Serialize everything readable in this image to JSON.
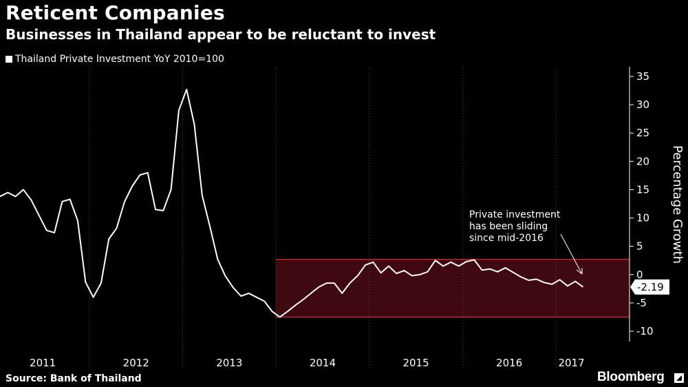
{
  "header": {
    "title": "Reticent Companies",
    "subtitle": "Businesses in Thailand appear to be reluctant to invest"
  },
  "footer": {
    "source": "Source:  Bank of Thailand",
    "brand": "Bloomberg"
  },
  "colors": {
    "background": "#000000",
    "line": "#ffffff",
    "band_fill": "#4a0a12",
    "band_stroke": "#e02a3a",
    "grid": "#555555"
  },
  "chart_data": {
    "type": "line",
    "title": "Reticent Companies",
    "subtitle": "Businesses in Thailand appear to be reluctant to invest",
    "ylabel": "Percentage Growth",
    "xlabel": "",
    "ylim": [
      -10,
      35
    ],
    "yticks": [
      35,
      30,
      25,
      20,
      15,
      10,
      5,
      0,
      -5,
      -10
    ],
    "y_axis_position": "right",
    "x_period_labels": [
      "2011",
      "2012",
      "2013",
      "2014",
      "2015",
      "2016",
      "2017"
    ],
    "x_periods": [
      {
        "label": "2011",
        "start": "2011-01",
        "end": "2011-12"
      },
      {
        "label": "2012",
        "start": "2012-01",
        "end": "2012-12"
      },
      {
        "label": "2013",
        "start": "2013-01",
        "end": "2013-12"
      },
      {
        "label": "2014",
        "start": "2014-01",
        "end": "2014-12"
      },
      {
        "label": "2015",
        "start": "2015-01",
        "end": "2015-12"
      },
      {
        "label": "2016",
        "start": "2016-01",
        "end": "2016-12"
      },
      {
        "label": "2017",
        "start": "2017-01",
        "end": "2017-04"
      }
    ],
    "grid": "vertical dotted year separators",
    "legend": "top-left",
    "series": [
      {
        "name": "Thailand Private Investment YoY 2010=100",
        "color": "#ffffff",
        "x": [
          "2011-01",
          "2011-02",
          "2011-03",
          "2011-04",
          "2011-05",
          "2011-06",
          "2011-07",
          "2011-08",
          "2011-09",
          "2011-10",
          "2011-11",
          "2011-12",
          "2012-01",
          "2012-02",
          "2012-03",
          "2012-04",
          "2012-05",
          "2012-06",
          "2012-07",
          "2012-08",
          "2012-09",
          "2012-10",
          "2012-11",
          "2012-12",
          "2013-01",
          "2013-02",
          "2013-03",
          "2013-04",
          "2013-05",
          "2013-06",
          "2013-07",
          "2013-08",
          "2013-09",
          "2013-10",
          "2013-11",
          "2013-12",
          "2014-01",
          "2014-02",
          "2014-03",
          "2014-04",
          "2014-05",
          "2014-06",
          "2014-07",
          "2014-08",
          "2014-09",
          "2014-10",
          "2014-11",
          "2014-12",
          "2015-01",
          "2015-02",
          "2015-03",
          "2015-04",
          "2015-05",
          "2015-06",
          "2015-07",
          "2015-08",
          "2015-09",
          "2015-10",
          "2015-11",
          "2015-12",
          "2016-01",
          "2016-02",
          "2016-03",
          "2016-04",
          "2016-05",
          "2016-06",
          "2016-07",
          "2016-08",
          "2016-09",
          "2016-10",
          "2016-11",
          "2016-12",
          "2017-01",
          "2017-02",
          "2017-03",
          "2017-04"
        ],
        "values": [
          13.8,
          14.5,
          13.8,
          15.0,
          13.2,
          10.5,
          7.8,
          7.4,
          12.9,
          13.3,
          9.5,
          -1.3,
          -4.0,
          -1.5,
          6.3,
          8.2,
          12.8,
          15.6,
          17.6,
          18.0,
          11.5,
          11.3,
          15.0,
          29.0,
          32.7,
          26.5,
          14.0,
          8.5,
          2.7,
          -0.3,
          -2.3,
          -3.8,
          -3.3,
          -4.0,
          -4.7,
          -6.5,
          -7.5,
          -6.5,
          -5.4,
          -4.4,
          -3.3,
          -2.2,
          -1.5,
          -1.5,
          -3.3,
          -1.5,
          -0.2,
          1.7,
          2.2,
          0.3,
          1.5,
          0.2,
          0.7,
          -0.2,
          0.0,
          0.5,
          2.5,
          1.5,
          2.2,
          1.5,
          2.3,
          2.6,
          0.8,
          1.0,
          0.5,
          1.2,
          0.4,
          -0.4,
          -1.0,
          -0.8,
          -1.4,
          -1.7,
          -0.9,
          -2.0,
          -1.2,
          -2.19
        ]
      }
    ],
    "highlight_band": {
      "y_from": -7.5,
      "y_to": 2.7,
      "x_from": "2014-01",
      "x_to": "2017-04"
    },
    "last_value_label": "-2.19",
    "annotation": {
      "lines": [
        "Private investment",
        "has been sliding",
        "since mid-2016"
      ]
    }
  }
}
